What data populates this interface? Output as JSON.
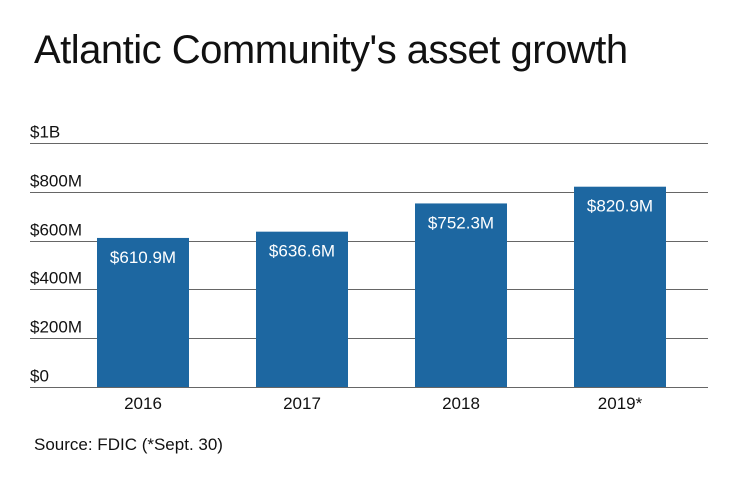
{
  "title": "Atlantic Community's asset growth",
  "source": "Source: FDIC (*Sept. 30)",
  "colors": {
    "bar": "#1d67a1",
    "grid": "#666666",
    "bar_label": "#ffffff",
    "text": "#111111"
  },
  "chart_data": {
    "type": "bar",
    "title": "Atlantic Community's asset growth",
    "xlabel": "",
    "ylabel": "",
    "categories": [
      "2016",
      "2017",
      "2018",
      "2019*"
    ],
    "values": [
      610.9,
      636.6,
      752.3,
      820.9
    ],
    "value_labels": [
      "$610.9M",
      "$636.6M",
      "$752.3M",
      "$820.9M"
    ],
    "units": "millions of dollars",
    "ylim": [
      0,
      1000
    ],
    "yticks": [
      0,
      200,
      400,
      600,
      800,
      1000
    ],
    "ytick_labels": [
      "$0",
      "$200M",
      "$400M",
      "$600M",
      "$800M",
      "$1B"
    ],
    "grid": true,
    "legend": "none"
  }
}
